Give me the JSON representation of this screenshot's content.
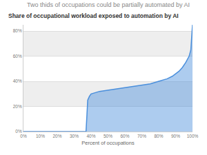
{
  "chart_data": {
    "type": "area",
    "title": "Two thids of occupations could be partially automated by AI",
    "subtitle": "Share of occupational workload exposed to automation by AI",
    "x_label": "Percent of occupations",
    "x": [
      0,
      37,
      37.5,
      38,
      39,
      40,
      45,
      50,
      55,
      60,
      65,
      70,
      75,
      80,
      85,
      88,
      90,
      92,
      94,
      96,
      98,
      99,
      100
    ],
    "values": [
      0,
      0,
      12,
      25,
      28,
      30,
      32,
      33,
      34,
      35,
      36,
      37,
      38,
      40,
      42,
      44,
      46,
      48,
      51,
      55,
      60,
      65,
      85
    ],
    "color": "#4a8fdc",
    "xlim": [
      0,
      100
    ],
    "xticks": [
      {
        "value": 0,
        "label": "0%"
      },
      {
        "value": 10,
        "label": "10%"
      },
      {
        "value": 20,
        "label": "20%"
      },
      {
        "value": 30,
        "label": "30%"
      },
      {
        "value": 40,
        "label": "40%"
      },
      {
        "value": 50,
        "label": "50%"
      },
      {
        "value": 60,
        "label": "60%"
      },
      {
        "value": 70,
        "label": "70%"
      },
      {
        "value": 80,
        "label": "80%"
      },
      {
        "value": 90,
        "label": "90%"
      },
      {
        "value": 100,
        "label": "100%"
      }
    ],
    "ylim": [
      0,
      85
    ],
    "yticks": [
      {
        "value": 0,
        "label": "0%"
      },
      {
        "value": 20,
        "label": "20%"
      },
      {
        "value": 40,
        "label": "40%"
      },
      {
        "value": 60,
        "label": "60%"
      },
      {
        "value": 80,
        "label": "80%"
      }
    ],
    "grid": true
  }
}
